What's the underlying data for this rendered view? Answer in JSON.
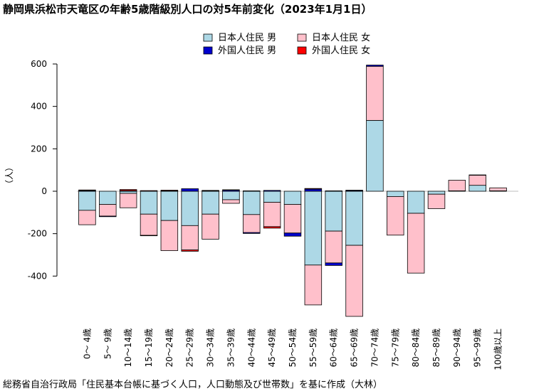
{
  "title": "静岡県浜松市天竜区の年齢5歳階級別人口の対5年前変化（2023年1月1日）",
  "source": "総務省自治行政局「住民基本台帳に基づく人口，人口動態及び世帯数」を基に作成（大林）",
  "colors": {
    "jp_male": "#add8e6",
    "jp_female": "#ffc0cb",
    "fr_male": "#0000cd",
    "fr_female": "#ff0000",
    "zero_line": "#bebebe"
  },
  "chart_data": {
    "type": "bar",
    "stacked": true,
    "ylabel": "（人）",
    "ylim": [
      -590,
      600
    ],
    "yticks": [
      -400,
      -200,
      0,
      200,
      400,
      600
    ],
    "legend_position": "top",
    "categories": [
      "0～ 4歳",
      "5～ 9歳",
      "10～14歳",
      "15～19歳",
      "20～24歳",
      "25～29歳",
      "30～34歳",
      "35～39歳",
      "40～44歳",
      "45～49歳",
      "50～54歳",
      "55～59歳",
      "60～64歳",
      "65～69歳",
      "70～74歳",
      "75～79歳",
      "80～84歳",
      "85～89歳",
      "90～94歳",
      "95～99歳",
      "100歳以上"
    ],
    "series": [
      {
        "name": "日本人住民 男",
        "key": "jp_male",
        "values": [
          -90,
          -62,
          -10,
          -108,
          -138,
          -162,
          -108,
          -40,
          -110,
          -52,
          -62,
          -348,
          -188,
          -255,
          334,
          -25,
          -104,
          -14,
          2,
          28,
          2
        ]
      },
      {
        "name": "日本人住民 女",
        "key": "jp_female",
        "values": [
          -68,
          -55,
          -68,
          -100,
          -142,
          -115,
          -118,
          -17,
          -85,
          -115,
          -135,
          -188,
          -150,
          -335,
          255,
          -182,
          -282,
          -68,
          50,
          48,
          14
        ]
      },
      {
        "name": "外国人住民 男",
        "key": "fr_male",
        "values": [
          3,
          -3,
          3,
          -2,
          2,
          12,
          2,
          5,
          -4,
          4,
          -15,
          10,
          -12,
          3,
          6,
          0,
          0,
          0,
          0,
          1,
          0
        ]
      },
      {
        "name": "外国人住民 女",
        "key": "fr_female",
        "values": [
          3,
          0,
          5,
          3,
          3,
          -6,
          2,
          2,
          2,
          -7,
          0,
          3,
          2,
          2,
          0,
          0,
          0,
          0,
          0,
          0,
          0
        ]
      }
    ]
  }
}
